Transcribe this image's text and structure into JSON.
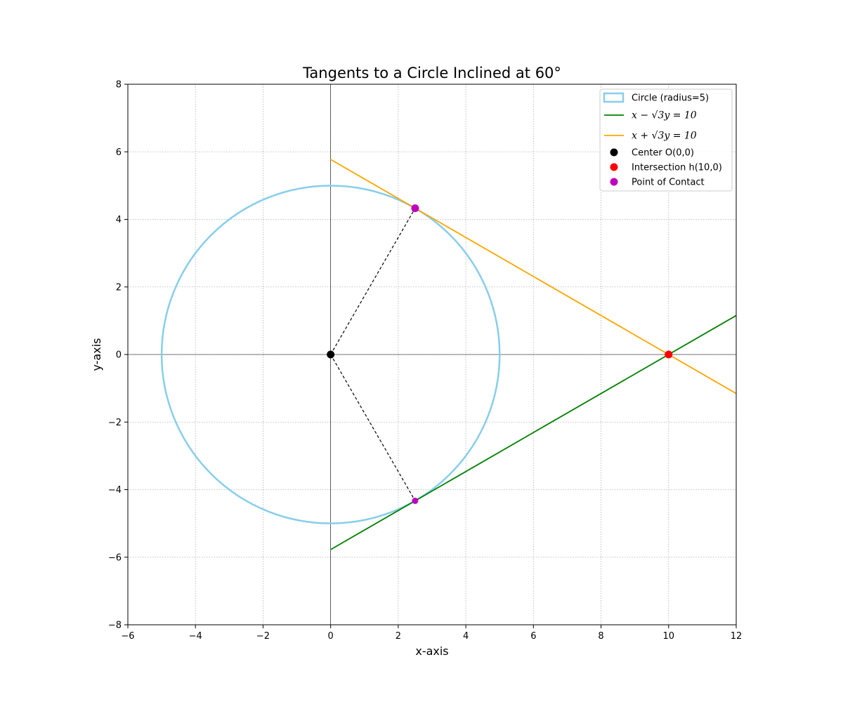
{
  "chart_data": {
    "type": "line",
    "title": "Tangents to a Circle Inclined at 60°",
    "xlabel": "x-axis",
    "ylabel": "y-axis",
    "xlim": [
      -6,
      12
    ],
    "ylim": [
      -8,
      8
    ],
    "xticks": [
      -6,
      -4,
      -2,
      0,
      2,
      4,
      6,
      8,
      10,
      12
    ],
    "yticks": [
      -8,
      -6,
      -4,
      -2,
      0,
      2,
      4,
      6,
      8
    ],
    "grid": true,
    "grid_style": "dotted",
    "legend_position": "top-right",
    "circle": {
      "name": "Circle (radius=5)",
      "center": [
        0,
        0
      ],
      "radius": 5,
      "color": "#87ceeb"
    },
    "series": [
      {
        "name": "x − √3y = 10",
        "color": "#008000",
        "x": [
          0,
          12
        ],
        "y": [
          -5.7735,
          1.1547
        ]
      },
      {
        "name": "x + √3y = 10",
        "color": "#ffa500",
        "x": [
          0,
          12
        ],
        "y": [
          5.7735,
          -1.1547
        ]
      }
    ],
    "radius_segments": [
      {
        "from": [
          0,
          0
        ],
        "to": [
          2.5,
          4.33
        ]
      },
      {
        "from": [
          0,
          0
        ],
        "to": [
          2.5,
          -4.33
        ]
      }
    ],
    "points": [
      {
        "name": "Center O(0,0)",
        "color": "#000000",
        "coords": [
          [
            0,
            0
          ]
        ]
      },
      {
        "name": "Intersection h(10,0)",
        "color": "#ff0000",
        "coords": [
          [
            10,
            0
          ]
        ]
      },
      {
        "name": "Point of Contact",
        "color": "#bf00bf",
        "coords": [
          [
            2.5,
            4.33
          ],
          [
            2.5,
            -4.33
          ]
        ]
      }
    ],
    "legend": [
      {
        "kind": "patch",
        "label": "Circle (radius=5)",
        "color": "#87ceeb"
      },
      {
        "kind": "line",
        "label": "x − √3y = 10",
        "color": "#008000"
      },
      {
        "kind": "line",
        "label": "x + √3y = 10",
        "color": "#ffa500"
      },
      {
        "kind": "marker",
        "label": "Center O(0,0)",
        "color": "#000000"
      },
      {
        "kind": "marker",
        "label": "Intersection h(10,0)",
        "color": "#ff0000"
      },
      {
        "kind": "marker",
        "label": "Point of Contact",
        "color": "#bf00bf"
      }
    ]
  }
}
